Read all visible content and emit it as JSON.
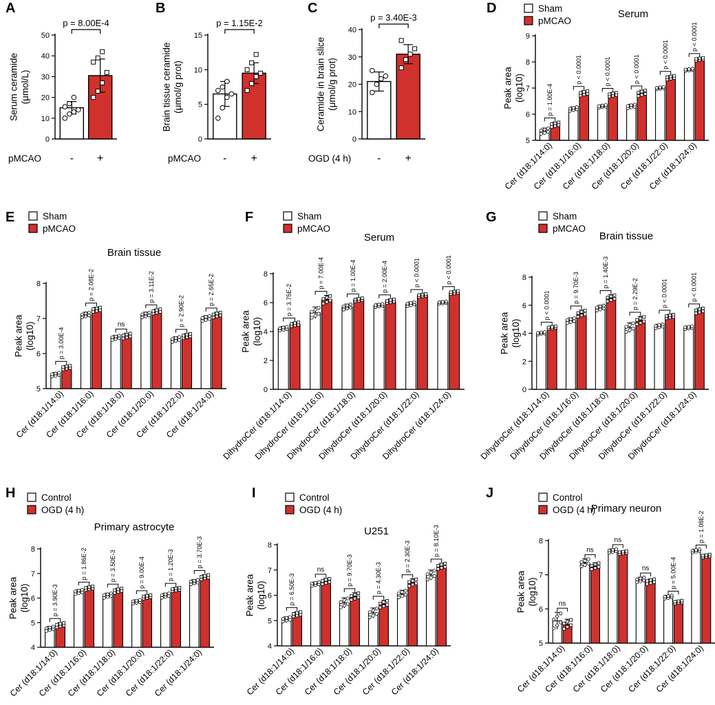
{
  "panels": [
    {
      "id": "A",
      "type": "bar",
      "ylabel": "Serum ceramide (μmol/L)",
      "yticks": [
        0,
        10,
        20,
        30,
        40,
        50
      ],
      "ylim": [
        0,
        50
      ],
      "cond_label": "pMCAO",
      "cond_values": [
        "-",
        "+"
      ],
      "p_value": "p = 8.00E-4",
      "series": [
        {
          "name": "Sham",
          "color": "#ffffff",
          "mean": 15,
          "sd": 3,
          "points": [
            10,
            12,
            13,
            14,
            15.5,
            17,
            20
          ]
        },
        {
          "name": "pMCAO",
          "color": "#d0312d",
          "mean": 30.5,
          "sd": 8,
          "points": [
            20,
            23,
            27,
            32,
            37,
            39,
            42
          ]
        }
      ]
    },
    {
      "id": "B",
      "type": "bar",
      "ylabel": "Brain tissue ceramide (μmol/g prot)",
      "yticks": [
        0,
        5,
        10,
        15
      ],
      "ylim": [
        0,
        15
      ],
      "cond_label": "pMCAO",
      "cond_values": [
        "-",
        "+"
      ],
      "p_value": "p = 1.15E-2",
      "series": [
        {
          "name": "Sham",
          "color": "#ffffff",
          "mean": 6.5,
          "sd": 1.8,
          "points": [
            3,
            4.5,
            6,
            6.5,
            7,
            7.5,
            8.3
          ]
        },
        {
          "name": "pMCAO",
          "color": "#d0312d",
          "mean": 9.5,
          "sd": 1.5,
          "points": [
            7,
            8,
            9,
            9.5,
            10,
            11,
            12.2
          ]
        }
      ]
    },
    {
      "id": "C",
      "type": "bar",
      "ylabel": "Ceramide in brain slice (μmol/g prot)",
      "yticks": [
        0,
        10,
        20,
        30,
        40
      ],
      "ylim": [
        0,
        40
      ],
      "cond_label": "OGD (4 h)",
      "cond_values": [
        "-",
        "+"
      ],
      "p_value": "p = 3.40E-3",
      "series": [
        {
          "name": "Control",
          "color": "#ffffff",
          "mean": 21,
          "sd": 3.5,
          "points": [
            17,
            20,
            22,
            23,
            25
          ]
        },
        {
          "name": "OGD",
          "color": "#d0312d",
          "mean": 31,
          "sd": 3.5,
          "points": [
            26,
            29,
            31,
            33,
            36
          ]
        }
      ]
    },
    {
      "id": "D",
      "type": "grouped_bar",
      "title": "Serum",
      "ylabel": "Peak area (log10)",
      "yticks": [
        5,
        6,
        7,
        8,
        9
      ],
      "ylim": [
        5,
        9
      ],
      "legend": [
        "Sham",
        "pMCAO"
      ],
      "categories": [
        "Cer (d18:1/14:0)",
        "Cer (d18:1/16:0)",
        "Cer (d18:1/18:0)",
        "Cer (d18:1/20:0)",
        "Cer (d18:1/22:0)",
        "Cer (d18:1/24:0)"
      ],
      "p_values": [
        "p = 1.00E-4",
        "p < 0.0001",
        "p < 0.0001",
        "p < 0.0001",
        "p < 0.0001",
        "p < 0.0001"
      ],
      "series": [
        {
          "name": "Sham",
          "values": [
            5.35,
            6.2,
            6.3,
            6.3,
            7.0,
            7.7
          ],
          "sd": [
            0.12,
            0.08,
            0.06,
            0.08,
            0.05,
            0.05
          ]
        },
        {
          "name": "pMCAO",
          "values": [
            5.6,
            6.8,
            6.75,
            6.8,
            7.4,
            8.1
          ],
          "sd": [
            0.1,
            0.1,
            0.08,
            0.12,
            0.08,
            0.06
          ]
        }
      ]
    },
    {
      "id": "E",
      "type": "grouped_bar",
      "title": "Brain tissue",
      "ylabel": "Peak area (log10)",
      "yticks": [
        5,
        6,
        7,
        8
      ],
      "ylim": [
        5,
        8
      ],
      "legend": [
        "Sham",
        "pMCAO"
      ],
      "categories": [
        "Cer (d18:1/14:0)",
        "Cer (d18:1/16:0)",
        "Cer (d18:1/18:0)",
        "Cer (d18:1/20:0)",
        "Cer (d18:1/22:0)",
        "Cer (d18:1/24:0)"
      ],
      "p_values": [
        "p = 3.00E-4",
        "p = 2.08E-2",
        "ns",
        "p = 3.11E-2",
        "p = 2.90E-2",
        "p = 2.65E-2"
      ],
      "series": [
        {
          "name": "Sham",
          "values": [
            5.4,
            7.1,
            6.45,
            7.1,
            6.4,
            7.0
          ],
          "sd": [
            0.06,
            0.08,
            0.07,
            0.08,
            0.08,
            0.08
          ]
        },
        {
          "name": "pMCAO",
          "values": [
            5.6,
            7.25,
            6.5,
            7.2,
            6.5,
            7.1
          ],
          "sd": [
            0.06,
            0.07,
            0.08,
            0.07,
            0.07,
            0.08
          ]
        }
      ]
    },
    {
      "id": "F",
      "type": "grouped_bar",
      "title": "Serum",
      "ylabel": "Peak area (log10)",
      "yticks": [
        0,
        2,
        4,
        6,
        8
      ],
      "ylim": [
        0,
        8
      ],
      "legend": [
        "Sham",
        "pMCAO"
      ],
      "categories": [
        "DihydroCer (d18:1/14:0)",
        "DihydroCer (d18:1/16:0)",
        "DihydroCer (d18:1/18:0)",
        "DihydroCer (d18:1/20:0)",
        "DihydroCer (d18:1/22:0)",
        "DihydroCer (d18:1/24:0)"
      ],
      "p_values": [
        "p = 3.75E-2",
        "p = 7.00E-4",
        "p = 1.00E-4",
        "p = 2.00E-4",
        "p < 0.0001",
        "p < 0.0001"
      ],
      "series": [
        {
          "name": "Sham",
          "values": [
            4.2,
            5.3,
            5.7,
            5.8,
            5.9,
            6.0
          ],
          "sd": [
            0.15,
            0.4,
            0.2,
            0.12,
            0.15,
            0.1
          ]
        },
        {
          "name": "pMCAO",
          "values": [
            4.5,
            6.2,
            6.2,
            6.1,
            6.5,
            6.7
          ],
          "sd": [
            0.15,
            0.3,
            0.12,
            0.15,
            0.12,
            0.12
          ]
        }
      ]
    },
    {
      "id": "G",
      "type": "grouped_bar",
      "title": "Brain tissue",
      "ylabel": "Peak area (log10)",
      "yticks": [
        0,
        2,
        4,
        6,
        8
      ],
      "ylim": [
        0,
        8
      ],
      "legend": [
        "Sham",
        "pMCAO"
      ],
      "categories": [
        "DihydroCer (d18:1/14:0)",
        "DihydroCer (d18:1/16:0)",
        "DihydroCer (d18:1/18:0)",
        "DihydroCer (d18:1/20:0)",
        "DihydroCer (d18:1/22:0)",
        "DihydroCer (d18:1/24:0)"
      ],
      "p_values": [
        "p < 0.0001",
        "p = 9.70E-3",
        "p = 1.40E-3",
        "p = 2.29E-2",
        "p < 0.0001",
        "p < 0.0001"
      ],
      "series": [
        {
          "name": "Sham",
          "values": [
            4.0,
            4.9,
            5.8,
            4.4,
            4.5,
            4.4
          ],
          "sd": [
            0.1,
            0.2,
            0.2,
            0.35,
            0.15,
            0.12
          ]
        },
        {
          "name": "pMCAO",
          "values": [
            4.4,
            5.4,
            6.5,
            4.9,
            5.2,
            5.6
          ],
          "sd": [
            0.1,
            0.25,
            0.25,
            0.3,
            0.15,
            0.2
          ]
        }
      ]
    },
    {
      "id": "H",
      "type": "grouped_bar",
      "title": "Primary astrocyte",
      "ylabel": "Peak area (log10)",
      "yticks": [
        4,
        5,
        6,
        7,
        8
      ],
      "ylim": [
        4,
        8
      ],
      "legend": [
        "Control",
        "OGD (4 h)"
      ],
      "categories": [
        "Cer (d18:1/14:0)",
        "Cer (d18:1/16:0)",
        "Cer (d18:1/18:0)",
        "Cer (d18:1/20:0)",
        "Cer (d18:1/22:0)",
        "Cer (d18:1/24:0)"
      ],
      "p_values": [
        "p = 3.90E-3",
        "p = 1.86E-2",
        "p = 3.50E-3",
        "p = 9.00E-4",
        "p = 1.20E-3",
        "p = 3.70E-3"
      ],
      "series": [
        {
          "name": "Control",
          "values": [
            4.75,
            6.25,
            6.1,
            5.85,
            6.1,
            6.65
          ],
          "sd": [
            0.1,
            0.1,
            0.1,
            0.08,
            0.1,
            0.1
          ]
        },
        {
          "name": "OGD (4 h)",
          "values": [
            4.9,
            6.4,
            6.3,
            6.05,
            6.35,
            6.85
          ],
          "sd": [
            0.1,
            0.08,
            0.1,
            0.08,
            0.08,
            0.1
          ]
        }
      ]
    },
    {
      "id": "I",
      "type": "grouped_bar",
      "title": "U251",
      "ylabel": "Peak area (log10)",
      "yticks": [
        4,
        5,
        6,
        7,
        8
      ],
      "ylim": [
        4,
        8
      ],
      "legend": [
        "Control",
        "OGD (4 h)"
      ],
      "categories": [
        "Cer (d18:1/14:0)",
        "Cer (d18:1/16:0)",
        "Cer (d18:1/18:0)",
        "Cer (d18:1/20:0)",
        "Cer (d18:1/22:0)",
        "Cer (d18:1/24:0)"
      ],
      "p_values": [
        "p = 6.50E-3",
        "ns",
        "p = 9.70E-3",
        "p = 4.30E-3",
        "p = 2.30E-3",
        "p = 8.10E-3"
      ],
      "series": [
        {
          "name": "Control",
          "values": [
            5.05,
            6.45,
            5.7,
            5.3,
            6.05,
            6.8
          ],
          "sd": [
            0.1,
            0.08,
            0.2,
            0.2,
            0.15,
            0.2
          ]
        },
        {
          "name": "OGD (4 h)",
          "values": [
            5.25,
            6.55,
            5.95,
            5.65,
            6.5,
            7.15
          ],
          "sd": [
            0.1,
            0.12,
            0.15,
            0.15,
            0.15,
            0.12
          ]
        }
      ]
    },
    {
      "id": "J",
      "type": "grouped_bar",
      "title": "Primary neuron",
      "ylabel": "Peak area (log10)",
      "yticks": [
        5,
        6,
        7,
        8
      ],
      "ylim": [
        5,
        8
      ],
      "legend": [
        "Control",
        "OGD (4 h)"
      ],
      "categories": [
        "Cer (d18:1/14:0)",
        "Cer (d18:1/16:0)",
        "Cer (d18:1/18:0)",
        "Cer (d18:1/20:0)",
        "Cer (d18:1/22:0)",
        "Cer (d18:1/24:0)"
      ],
      "p_values": [
        "ns",
        "ns",
        "ns",
        "ns",
        "p = 5.00E-4",
        "p = 1.08E-2"
      ],
      "series": [
        {
          "name": "Control",
          "values": [
            5.65,
            7.35,
            7.7,
            6.85,
            6.35,
            7.7
          ],
          "sd": [
            0.25,
            0.12,
            0.06,
            0.08,
            0.05,
            0.05
          ]
        },
        {
          "name": "OGD (4 h)",
          "values": [
            5.55,
            7.25,
            7.65,
            6.8,
            6.2,
            7.55
          ],
          "sd": [
            0.15,
            0.1,
            0.05,
            0.08,
            0.05,
            0.05
          ]
        }
      ]
    }
  ],
  "colors": {
    "bar_a": "#ffffff",
    "bar_b": "#d0312d",
    "stroke": "#000000"
  }
}
